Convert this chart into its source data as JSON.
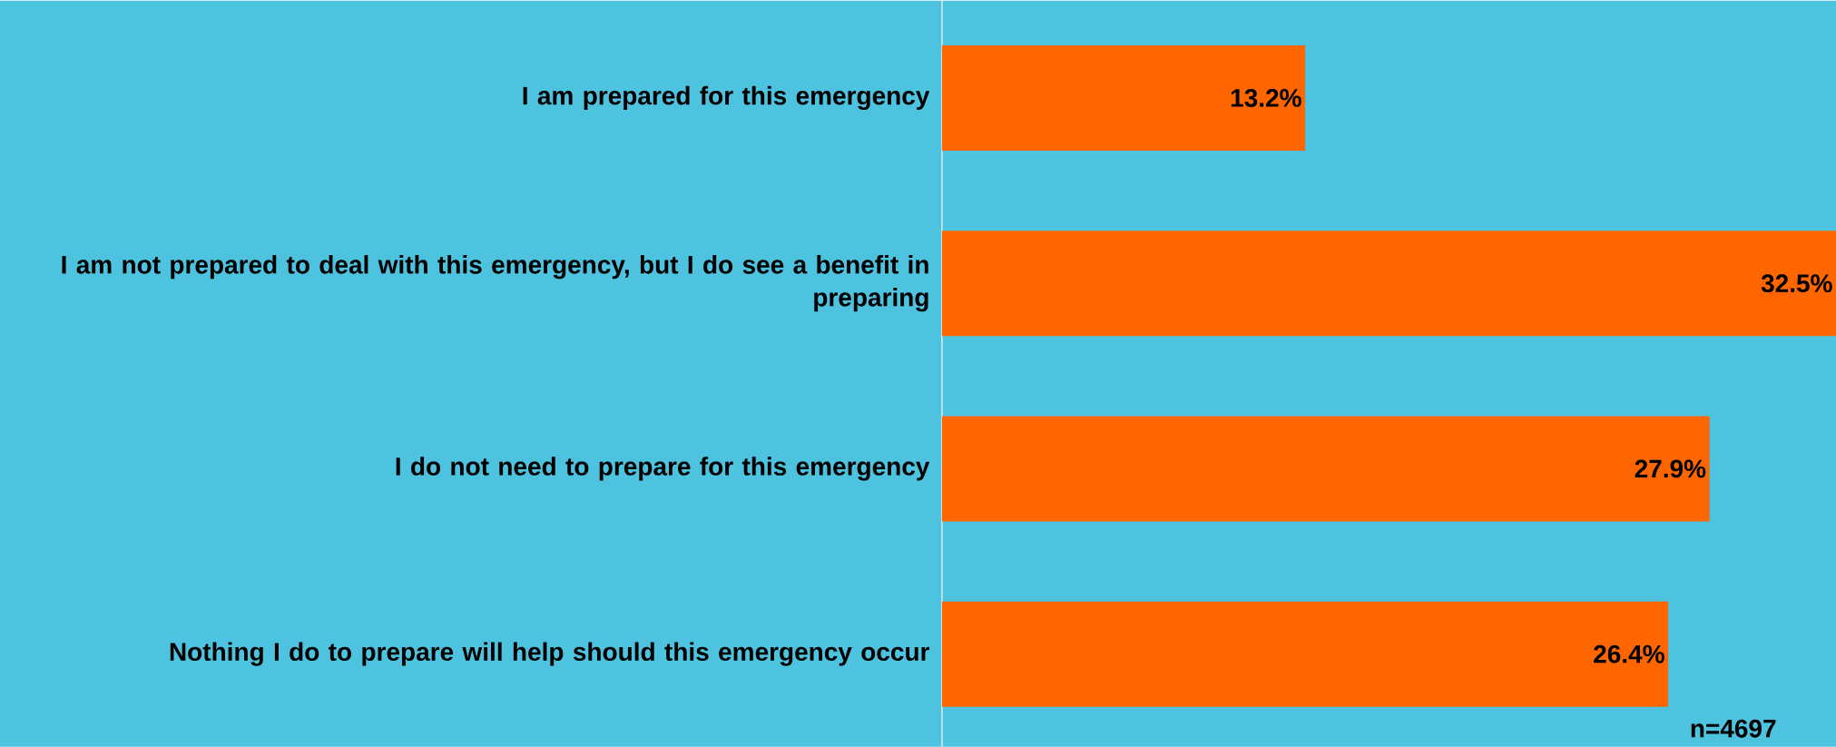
{
  "chart_data": {
    "type": "bar",
    "orientation": "horizontal",
    "categories": [
      "I am prepared for this emergency",
      "I am not prepared to deal with this emergency, but I do see a benefit in preparing",
      "I do not need to prepare for this emergency",
      "Nothing I do to prepare will help should this emergency occur"
    ],
    "values": [
      13.2,
      32.5,
      27.9,
      26.4
    ],
    "value_labels": [
      "13.2%",
      "32.5%",
      "27.9%",
      "26.4%"
    ],
    "color": "#ff6600",
    "xlim": [
      0,
      32.5
    ],
    "tick_labels": "y",
    "annotations": [
      "n=4697"
    ]
  }
}
